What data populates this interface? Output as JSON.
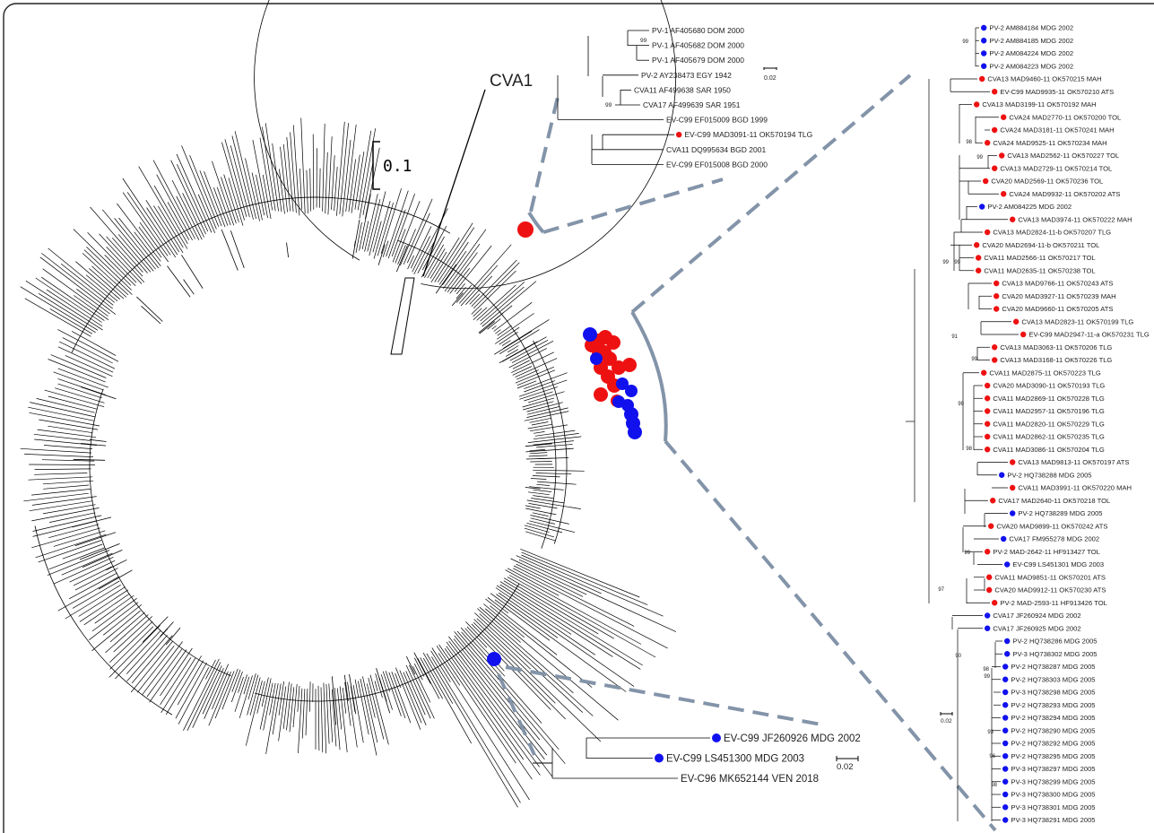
{
  "colors": {
    "red_marker": "#ee1111",
    "blue_marker": "#1111ee",
    "zoom_dash": "#8394a9",
    "branch": "#000000"
  },
  "main_tree": {
    "clade_label": "CVA1",
    "scale_label": "0.1"
  },
  "inset_top": {
    "scale_label": "0.02",
    "bootstraps": [
      "99",
      "99"
    ],
    "leaves": [
      {
        "label": "PV-1 AF405680 DOM 2000",
        "marker": "none"
      },
      {
        "label": "PV-1 AF405682 DOM 2000",
        "marker": "none"
      },
      {
        "label": "PV-1 AF405679 DOM 2000",
        "marker": "none"
      },
      {
        "label": "PV-2 AY238473 EGY 1942",
        "marker": "none"
      },
      {
        "label": "CVA11 AF499638 SAR 1950",
        "marker": "none"
      },
      {
        "label": "CVA17 AF499639 SAR 1951",
        "marker": "none"
      },
      {
        "label": "EV-C99 EF015009 BGD 1999",
        "marker": "none"
      },
      {
        "label": "EV-C99 MAD3091-11 OK570194 TLG",
        "marker": "red"
      },
      {
        "label": "CVA11 DQ995634 BGD 2001",
        "marker": "none"
      },
      {
        "label": "EV-C99 EF015008 BGD 2000",
        "marker": "none"
      }
    ]
  },
  "inset_bottom": {
    "scale_label": "0.02",
    "leaves": [
      {
        "label": "EV-C99 JF260926 MDG 2002",
        "marker": "blue"
      },
      {
        "label": "EV-C99 LS451300 MDG 2003",
        "marker": "blue"
      },
      {
        "label": "EV-C96 MK652144 VEN 2018",
        "marker": "none"
      }
    ]
  },
  "inset_right": {
    "scale_label": "0.02",
    "bootstraps": [
      "99",
      "98",
      "99",
      "99",
      "99",
      "91",
      "99",
      "99",
      "98",
      "99",
      "97",
      "90",
      "98",
      "99",
      "93",
      "96",
      "98"
    ],
    "leaves": [
      {
        "label": "PV-2 AM884184 MDG 2002",
        "marker": "blue"
      },
      {
        "label": "PV-2 AM884185 MDG 2002",
        "marker": "blue"
      },
      {
        "label": "PV-2 AM084224 MDG 2002",
        "marker": "blue"
      },
      {
        "label": "PV-2 AM084223 MDG 2002",
        "marker": "blue"
      },
      {
        "label": "CVA13 MAD9460-11 OK570215 MAH",
        "marker": "red"
      },
      {
        "label": "EV-C99 MAD9935-11 OK570210 ATS",
        "marker": "red"
      },
      {
        "label": "CVA13 MAD3199-11 OK570192 MAH",
        "marker": "red"
      },
      {
        "label": "CVA24 MAD2770-11 OK570200 TOL",
        "marker": "red"
      },
      {
        "label": "CVA24 MAD3181-11 OK570241 MAH",
        "marker": "red"
      },
      {
        "label": "CVA24 MAD9525-11 OK570234 MAH",
        "marker": "red"
      },
      {
        "label": "CVA13 MAD2562-11 OK570227 TOL",
        "marker": "red"
      },
      {
        "label": "CVA13 MAD2729-11 OK570214 TOL",
        "marker": "red"
      },
      {
        "label": "CVA20 MAD2569-11 OK570236 TOL",
        "marker": "red"
      },
      {
        "label": "CVA24 MAD9932-11 OK570202 ATS",
        "marker": "red"
      },
      {
        "label": "PV-2 AM084225 MDG 2002",
        "marker": "blue"
      },
      {
        "label": "CVA13 MAD3974-11 OK570222 MAH",
        "marker": "red"
      },
      {
        "label": "CVA13 MAD2824-11-b OK570207 TLG",
        "marker": "red"
      },
      {
        "label": "CVA20 MAD2694-11-b OK570211 TOL",
        "marker": "red"
      },
      {
        "label": "CVA11 MAD2566-11 OK570217 TOL",
        "marker": "red"
      },
      {
        "label": "CVA11 MAD2635-11 OK570238 TOL",
        "marker": "red"
      },
      {
        "label": "CVA13 MAD9766-11 OK570243 ATS",
        "marker": "red"
      },
      {
        "label": "CVA20 MAD3927-11 OK570239 MAH",
        "marker": "red"
      },
      {
        "label": "CVA20 MAD9660-11 OK570205 ATS",
        "marker": "red"
      },
      {
        "label": "CVA13 MAD2823-11 OK570199 TLG",
        "marker": "red"
      },
      {
        "label": "EV-C99 MAD2947-11-a OK570231 TLG",
        "marker": "red"
      },
      {
        "label": "CVA13 MAD3063-11 OK570206 TLG",
        "marker": "red"
      },
      {
        "label": "CVA13 MAD3168-11 OK570226 TLG",
        "marker": "red"
      },
      {
        "label": "CVA11 MAD2875-11 OK570223 TLG",
        "marker": "red"
      },
      {
        "label": "CVA20 MAD3090-11 OK570193 TLG",
        "marker": "red"
      },
      {
        "label": "CVA11 MAD2869-11 OK570228 TLG",
        "marker": "red"
      },
      {
        "label": "CVA11 MAD2957-11 OK570196 TLG",
        "marker": "red"
      },
      {
        "label": "CVA11 MAD2820-11 OK570229 TLG",
        "marker": "red"
      },
      {
        "label": "CVA11 MAD2862-11 OK570235 TLG",
        "marker": "red"
      },
      {
        "label": "CVA11 MAD3086-11 OK570204 TLG",
        "marker": "red"
      },
      {
        "label": "CVA13 MAD9813-11 OK570197 ATS",
        "marker": "red"
      },
      {
        "label": "PV-2 HQ738288 MDG 2005",
        "marker": "blue"
      },
      {
        "label": "CVA11 MAD3991-11 OK570220 MAH",
        "marker": "red"
      },
      {
        "label": "CVA17 MAD2640-11 OK570218 TOL",
        "marker": "red"
      },
      {
        "label": "PV-2 HQ738289 MDG 2005",
        "marker": "blue"
      },
      {
        "label": "CVA20 MAD9899-11 OK570242 ATS",
        "marker": "red"
      },
      {
        "label": "CVA17 FM955278 MDG 2002",
        "marker": "blue"
      },
      {
        "label": "PV-2 MAD-2642-11 HF913427 TOL",
        "marker": "red"
      },
      {
        "label": "EV-C99 LS451301 MDG 2003",
        "marker": "blue"
      },
      {
        "label": "CVA11 MAD9851-11 OK570201 ATS",
        "marker": "red"
      },
      {
        "label": "CVA20 MAD9912-11 OK570230 ATS",
        "marker": "red"
      },
      {
        "label": "PV-2 MAD-2593-11 HF913426 TOL",
        "marker": "red"
      },
      {
        "label": "CVA17 JF260924 MDG 2002",
        "marker": "blue"
      },
      {
        "label": "CVA17 JF260925 MDG 2002",
        "marker": "blue"
      },
      {
        "label": "PV-2 HQ738286 MDG 2005",
        "marker": "blue"
      },
      {
        "label": "PV-3 HQ738302 MDG 2005",
        "marker": "blue"
      },
      {
        "label": "PV-2 HQ738287 MDG 2005",
        "marker": "blue"
      },
      {
        "label": "PV-2 HQ738303 MDG 2005",
        "marker": "blue"
      },
      {
        "label": "PV-3 HQ738298 MDG 2005",
        "marker": "blue"
      },
      {
        "label": "PV-2 HQ738293 MDG 2005",
        "marker": "blue"
      },
      {
        "label": "PV-2 HQ738294 MDG 2005",
        "marker": "blue"
      },
      {
        "label": "PV-2 HQ738290 MDG 2005",
        "marker": "blue"
      },
      {
        "label": "PV-2 HQ738292 MDG 2005",
        "marker": "blue"
      },
      {
        "label": "PV-2 HQ738295 MDG 2005",
        "marker": "blue"
      },
      {
        "label": "PV-3 HQ738297 MDG 2005",
        "marker": "blue"
      },
      {
        "label": "PV-3 HQ738299 MDG 2005",
        "marker": "blue"
      },
      {
        "label": "PV-3 HQ738300 MDG 2005",
        "marker": "blue"
      },
      {
        "label": "PV-3 HQ738301 MDG 2005",
        "marker": "blue"
      },
      {
        "label": "PV-3 HQ738291 MDG 2005",
        "marker": "blue"
      }
    ]
  }
}
